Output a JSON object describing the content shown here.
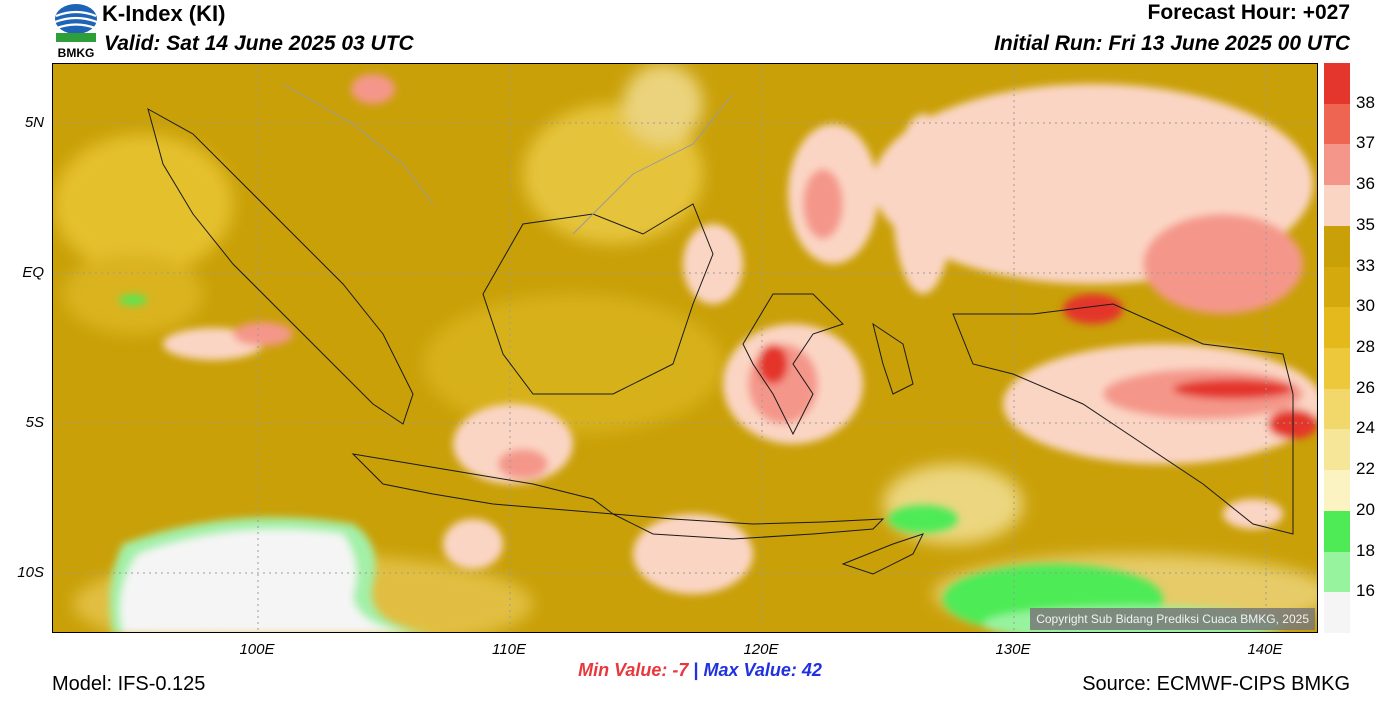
{
  "header": {
    "title": "K-Index (KI)",
    "valid": "Valid: Sat 14 June 2025 03 UTC",
    "forecast_hour": "Forecast Hour: +027",
    "initial_run": "Initial Run: Fri 13 June 2025 00 UTC",
    "logo_text": "BMKG"
  },
  "map": {
    "lat_labels": [
      "5N",
      "EQ",
      "5S",
      "10S"
    ],
    "lon_labels": [
      "100E",
      "110E",
      "120E",
      "130E",
      "140E"
    ],
    "copyright": "Copyright Sub Bidang Prediksi Cuaca BMKG, 2025",
    "colors": {
      "background": "#c9a008",
      "green_low": "#4eeb57",
      "white_area": "#f5f5f5",
      "light_yellow": "#efd98a",
      "pink": "#fbd5c4",
      "salmon": "#f4978a",
      "red": "#e4362c"
    }
  },
  "colorbar": {
    "labels": [
      "38",
      "37",
      "36",
      "35",
      "33",
      "30",
      "28",
      "26",
      "24",
      "22",
      "20",
      "18",
      "16"
    ],
    "colors": [
      "#e4362c",
      "#ee6651",
      "#f4978a",
      "#fbd5c4",
      "#c9a008",
      "#d4a90d",
      "#e3b91c",
      "#ecc83a",
      "#f2d86a",
      "#f6e697",
      "#fbf3c1",
      "#4eeb57",
      "#97f39e",
      "#f5f5f5"
    ]
  },
  "footer": {
    "min_label": "Min Value:  -7",
    "max_label": "Max Value:  42",
    "separator": "|",
    "model": "Model: IFS-0.125",
    "source": "Source: ECMWF-CIPS BMKG"
  }
}
